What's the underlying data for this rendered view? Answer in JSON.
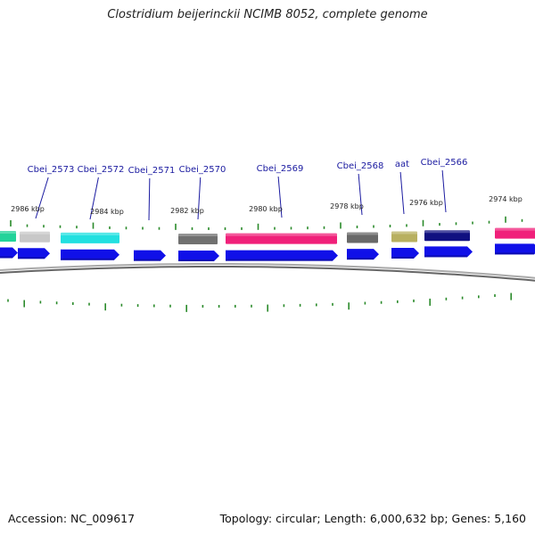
{
  "title": "Clostridium beijerinckii NCIMB 8052, complete genome",
  "accession": "Accession: NC_009617",
  "summary": "Topology: circular; Length: 6,000,632 bp; Genes: 5,160",
  "colors": {
    "cds": "#1010e8",
    "gene_label": "#1a1aa0",
    "backbone": "#888888",
    "tick": "#2a8a2a"
  },
  "kbp_labels": [
    "2986 kbp",
    "2984 kbp",
    "2982 kbp",
    "2980 kbp",
    "2978 kbp",
    "2976 kbp",
    "2974 kbp"
  ],
  "gene_labels": [
    "Cbei_2573",
    "Cbei_2572",
    "Cbei_2571",
    "Cbei_2570",
    "Cbei_2569",
    "Cbei_2568",
    "aat",
    "Cbei_2566"
  ],
  "features": [
    {
      "color": "#22d39a"
    },
    {
      "color": "#c8c8c8"
    },
    {
      "color": "#22e0e0"
    },
    {
      "color": "#707070"
    },
    {
      "color": "#f0207a"
    },
    {
      "color": "#686868"
    },
    {
      "color": "#b8b060"
    },
    {
      "color": "#101080"
    },
    {
      "color": "#f0207a"
    }
  ]
}
